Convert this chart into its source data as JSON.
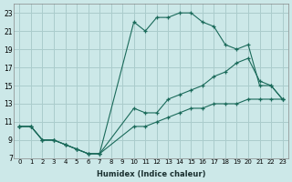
{
  "xlabel": "Humidex (Indice chaleur)",
  "background_color": "#cce8e8",
  "grid_color": "#aacccc",
  "line_color": "#1a6a5a",
  "curve1_x": [
    0,
    1,
    2,
    3,
    4,
    5,
    6,
    7,
    10,
    11,
    12,
    13,
    14,
    15,
    16,
    17,
    18,
    19,
    20,
    21,
    22,
    23
  ],
  "curve1_y": [
    10.5,
    10.5,
    9.0,
    9.0,
    8.5,
    8.0,
    7.5,
    7.5,
    22.0,
    21.0,
    22.5,
    22.5,
    23.0,
    23.0,
    22.0,
    21.5,
    19.5,
    19.0,
    19.5,
    15.0,
    15.0,
    13.5
  ],
  "curve2_x": [
    0,
    1,
    2,
    3,
    4,
    5,
    6,
    7,
    10,
    11,
    12,
    13,
    14,
    15,
    16,
    17,
    18,
    19,
    20,
    21,
    22,
    23
  ],
  "curve2_y": [
    10.5,
    10.5,
    9.0,
    9.0,
    8.5,
    8.0,
    7.5,
    7.5,
    12.5,
    12.0,
    12.0,
    13.5,
    14.0,
    14.5,
    15.0,
    16.0,
    16.5,
    17.5,
    18.0,
    15.5,
    15.0,
    13.5
  ],
  "curve3_x": [
    0,
    1,
    2,
    3,
    4,
    5,
    6,
    7,
    10,
    11,
    12,
    13,
    14,
    15,
    16,
    17,
    18,
    19,
    20,
    21,
    22,
    23
  ],
  "curve3_y": [
    10.5,
    10.5,
    9.0,
    9.0,
    8.5,
    8.0,
    7.5,
    7.5,
    10.5,
    10.5,
    11.0,
    11.5,
    12.0,
    12.5,
    12.5,
    13.0,
    13.0,
    13.0,
    13.5,
    13.5,
    13.5,
    13.5
  ],
  "ylim": [
    7,
    24
  ],
  "xlim": [
    -0.5,
    23.5
  ],
  "yticks": [
    7,
    9,
    11,
    13,
    15,
    17,
    19,
    21,
    23
  ],
  "xticks": [
    0,
    1,
    2,
    3,
    4,
    5,
    6,
    7,
    8,
    9,
    10,
    11,
    12,
    13,
    14,
    15,
    16,
    17,
    18,
    19,
    20,
    21,
    22,
    23
  ]
}
